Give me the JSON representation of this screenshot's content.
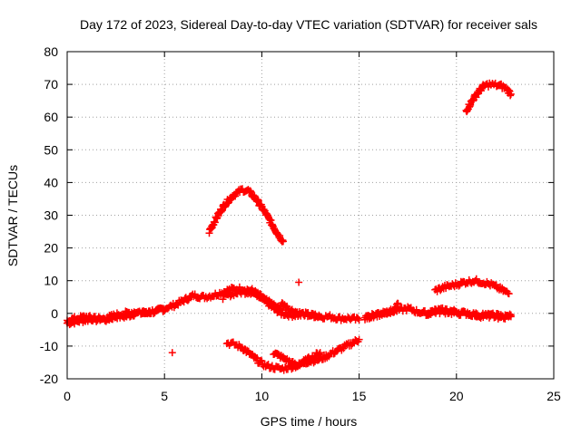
{
  "chart_data": {
    "type": "scatter",
    "title": "Day 172 of 2023, Sidereal Day-to-day VTEC variation (SDTVAR) for receiver sals",
    "xlabel": "GPS time / hours",
    "ylabel": "SDTVAR / TECUs",
    "xlim": [
      0,
      25
    ],
    "ylim": [
      -20,
      80
    ],
    "xticks": [
      0,
      5,
      10,
      15,
      20,
      25
    ],
    "yticks": [
      -20,
      -10,
      0,
      10,
      20,
      30,
      40,
      50,
      60,
      70,
      80
    ],
    "grid": true,
    "marker": "+",
    "series": [
      {
        "name": "SDTVAR",
        "color": "#ff0000",
        "segments": [
          {
            "x": [
              0.0,
              0.5,
              1.0,
              1.5,
              2.0,
              2.5,
              3.0,
              3.5,
              4.0,
              4.5,
              5.0,
              5.5,
              6.0,
              6.5,
              7.0,
              7.5,
              8.0,
              8.5,
              9.0,
              9.5,
              10.0,
              10.5,
              11.0,
              11.5,
              12.0,
              12.5,
              13.0,
              13.5,
              14.0,
              14.5,
              15.0
            ],
            "y": [
              -3,
              -2.5,
              -2,
              -1.5,
              -2,
              -1,
              -1,
              0,
              0,
              0.5,
              1.5,
              2.5,
              4,
              5.5,
              5,
              5.5,
              6.5,
              7.5,
              7.5,
              7,
              5,
              2,
              0,
              -0.5,
              -0.5,
              -0.5,
              -1,
              -1,
              -1.5,
              -1.5,
              -2
            ]
          },
          {
            "x": [
              0.0,
              0.5,
              1.0,
              1.5,
              2.0,
              2.5,
              3.0,
              3.5,
              4.0,
              4.5,
              5.0
            ],
            "y": [
              -2,
              -1.5,
              -1,
              -2,
              -1.5,
              -0.5,
              0,
              0.5,
              0.5,
              1,
              1
            ]
          },
          {
            "x": [
              8.0,
              8.5,
              9.0,
              9.5,
              10.0,
              10.5,
              11.0
            ],
            "y": [
              5,
              6,
              6.5,
              6.5,
              5,
              3,
              1
            ]
          },
          {
            "x": [
              11.0,
              11.5,
              12.0,
              12.5,
              13.0
            ],
            "y": [
              3,
              1,
              0,
              -0.5,
              -1
            ]
          },
          {
            "x": [
              7.3,
              7.6,
              8.0,
              8.5,
              9.0,
              9.3,
              9.7,
              10.1,
              10.5,
              10.8,
              11.1
            ],
            "y": [
              25,
              28.5,
              32.5,
              36,
              37.8,
              37.5,
              35,
              31.5,
              27.5,
              24.5,
              22
            ]
          },
          {
            "x": [
              8.2,
              8.6,
              9.0,
              9.4,
              9.8,
              10.2,
              10.6,
              11.0,
              11.4,
              11.8,
              12.2,
              12.6,
              13.0,
              13.5,
              14.0,
              14.5,
              15.0
            ],
            "y": [
              -9,
              -9.5,
              -10.5,
              -12.5,
              -14.5,
              -16,
              -16.5,
              -17,
              -16.5,
              -16,
              -15,
              -14.5,
              -14,
              -12.5,
              -11,
              -9.5,
              -8
            ]
          },
          {
            "x": [
              10.6,
              10.9,
              11.2,
              11.5,
              11.8,
              12.1,
              12.4,
              12.7,
              13.0
            ],
            "y": [
              -12,
              -13,
              -14,
              -15,
              -16,
              -15,
              -14,
              -13,
              -12
            ]
          },
          {
            "x": [
              11.9
            ],
            "y": [
              9.5
            ]
          },
          {
            "x": [
              5.4
            ],
            "y": [
              -12
            ]
          },
          {
            "x": [
              15.3,
              15.6,
              16.0,
              16.5,
              17.0,
              17.5,
              18.0,
              18.5,
              19.0,
              19.5,
              20.0,
              20.5,
              21.0,
              21.5,
              22.0,
              22.5,
              22.8
            ],
            "y": [
              -1,
              -0.5,
              0,
              0.5,
              1,
              1.5,
              0.5,
              0,
              0.5,
              0.5,
              0,
              0,
              -0.5,
              -0.5,
              -1,
              -1,
              -1
            ]
          },
          {
            "x": [
              15.3,
              15.8,
              16.3,
              16.8,
              17.0
            ],
            "y": [
              -1.5,
              -0.5,
              0,
              0.5,
              3
            ]
          },
          {
            "x": [
              18.5,
              19.0,
              19.5,
              20.0,
              20.5,
              21.0,
              21.5,
              22.0,
              22.5,
              22.8
            ],
            "y": [
              0,
              1,
              1,
              0.5,
              0,
              -0.5,
              -1,
              -0.5,
              -1,
              -0.5
            ]
          },
          {
            "x": [
              18.9,
              19.4,
              19.9,
              20.4,
              20.9,
              21.4,
              21.9,
              22.4,
              22.7
            ],
            "y": [
              7,
              8,
              8.7,
              9.5,
              10,
              9.5,
              8.5,
              7,
              6
            ]
          },
          {
            "x": [
              20.5,
              20.8,
              21.1,
              21.4,
              21.7,
              22.0,
              22.3,
              22.6,
              22.8
            ],
            "y": [
              62,
              65,
              67.5,
              69.5,
              70,
              69.8,
              69.5,
              68.5,
              67
            ]
          }
        ]
      }
    ]
  }
}
